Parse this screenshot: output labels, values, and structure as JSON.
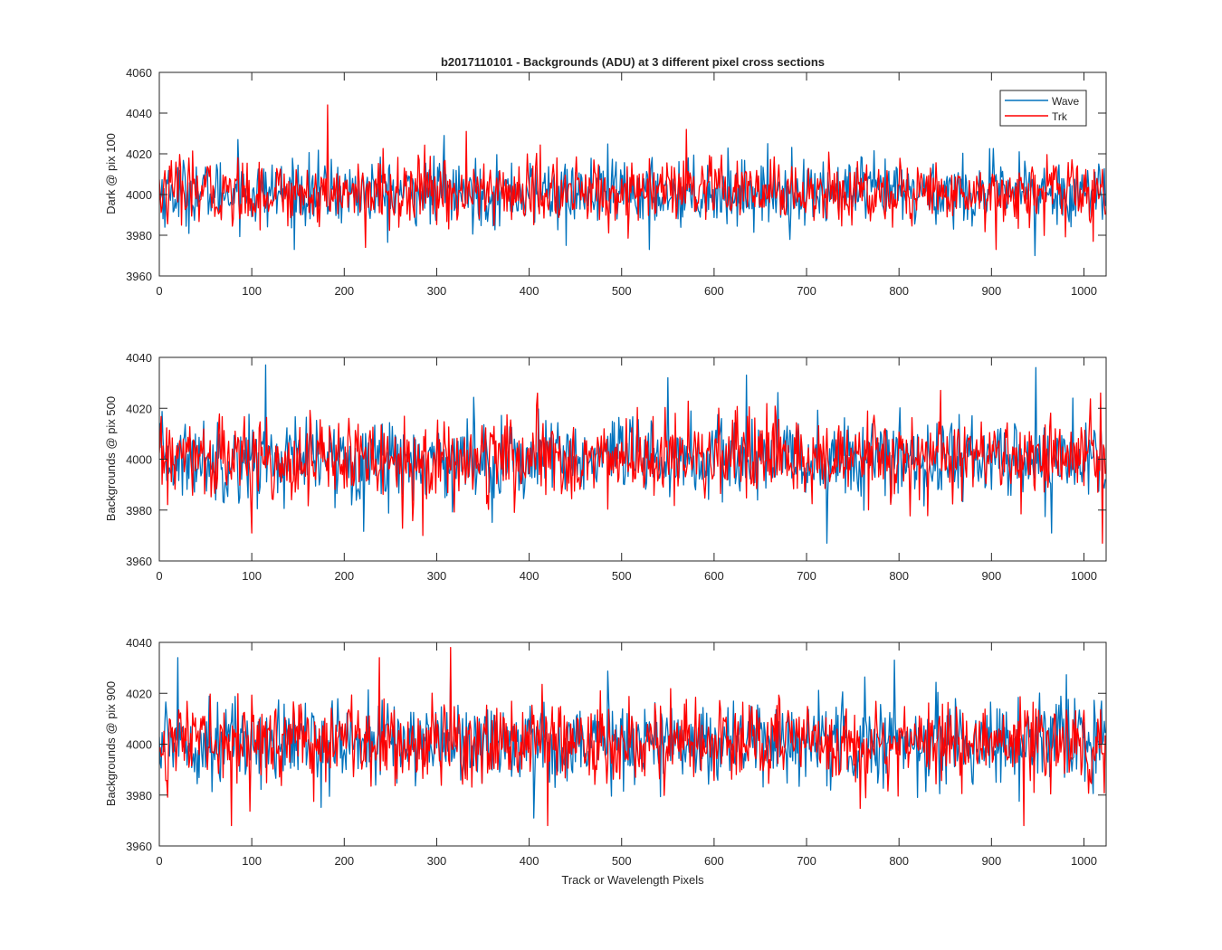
{
  "chart_data": [
    {
      "type": "line",
      "title": "b2017110101 - Backgrounds (ADU) at 3 different pixel cross sections",
      "xlabel": "",
      "ylabel": "Dark @ pix 100",
      "xlim": [
        0,
        1024
      ],
      "ylim": [
        3960,
        4060
      ],
      "xticks": [
        0,
        100,
        200,
        300,
        400,
        500,
        600,
        700,
        800,
        900,
        1000
      ],
      "yticks": [
        3960,
        3980,
        4000,
        4020,
        4040,
        4060
      ],
      "noise": {
        "n": 1024,
        "mean": 4001,
        "std": 8
      },
      "legend": {
        "position": "top-right",
        "entries": [
          "Wave",
          "Trk"
        ]
      },
      "series": [
        {
          "name": "Wave",
          "color": "#0072BD",
          "spikes": [
            [
              85,
              4027
            ],
            [
              308,
              4029
            ],
            [
              947,
              3970
            ],
            [
              440,
              3975
            ],
            [
              530,
              3973
            ]
          ]
        },
        {
          "name": "Trk",
          "color": "#FF0000",
          "spikes": [
            [
              182,
              4044
            ],
            [
              332,
              4031
            ],
            [
              570,
              4032
            ],
            [
              905,
              3973
            ],
            [
              1010,
              3977
            ],
            [
              223,
              3974
            ]
          ]
        }
      ]
    },
    {
      "type": "line",
      "title": "",
      "xlabel": "",
      "ylabel": "Backgrounds @ pix 500",
      "xlim": [
        0,
        1024
      ],
      "ylim": [
        3960,
        4040
      ],
      "xticks": [
        0,
        100,
        200,
        300,
        400,
        500,
        600,
        700,
        800,
        900,
        1000
      ],
      "yticks": [
        3960,
        3980,
        4000,
        4020,
        4040
      ],
      "noise": {
        "n": 1024,
        "mean": 4000,
        "std": 8
      },
      "series": [
        {
          "name": "Wave",
          "color": "#0072BD",
          "spikes": [
            [
              115,
              4037
            ],
            [
              635,
              4033
            ],
            [
              948,
              4036
            ],
            [
              722,
              3967
            ],
            [
              965,
              3971
            ],
            [
              550,
              4032
            ]
          ]
        },
        {
          "name": "Trk",
          "color": "#FF0000",
          "spikes": [
            [
              285,
              3970
            ],
            [
              1020,
              3967
            ],
            [
              845,
              4027
            ],
            [
              1018,
              4026
            ],
            [
              100,
              3971
            ]
          ]
        }
      ]
    },
    {
      "type": "line",
      "title": "",
      "xlabel": "Track or Wavelength Pixels",
      "ylabel": "Backgrounds @ pix 900",
      "xlim": [
        0,
        1024
      ],
      "ylim": [
        3960,
        4040
      ],
      "xticks": [
        0,
        100,
        200,
        300,
        400,
        500,
        600,
        700,
        800,
        900,
        1000
      ],
      "yticks": [
        3960,
        3980,
        4000,
        4020,
        4040
      ],
      "noise": {
        "n": 1024,
        "mean": 4001,
        "std": 8
      },
      "series": [
        {
          "name": "Wave",
          "color": "#0072BD",
          "spikes": [
            [
              20,
              4034
            ],
            [
              795,
              4033
            ],
            [
              405,
              3971
            ],
            [
              315,
              4030
            ]
          ]
        },
        {
          "name": "Trk",
          "color": "#FF0000",
          "spikes": [
            [
              315,
              4038
            ],
            [
              238,
              4034
            ],
            [
              78,
              3968
            ],
            [
              420,
              3968
            ],
            [
              935,
              3968
            ]
          ]
        }
      ]
    }
  ]
}
